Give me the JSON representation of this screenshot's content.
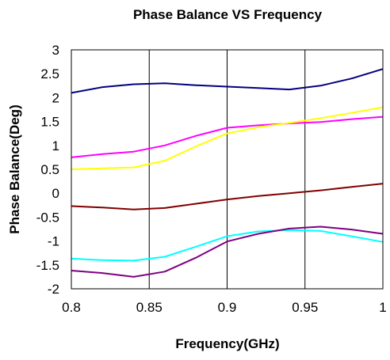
{
  "chart_data": {
    "type": "line",
    "title": "Phase Balance VS Frequency",
    "xlabel": "Frequency(GHz)",
    "ylabel": "Phase Balance(Deg)",
    "xlim": [
      0.8,
      1.0
    ],
    "ylim": [
      -2,
      3
    ],
    "x_ticks": [
      0.8,
      0.85,
      0.9,
      0.95,
      1.0
    ],
    "x_tick_labels": [
      "0.8",
      "0.85",
      "0.9",
      "0.95",
      "1"
    ],
    "y_ticks": [
      3,
      2.5,
      2,
      1.5,
      1,
      0.5,
      0,
      -0.5,
      -1,
      -1.5,
      -2
    ],
    "y_tick_labels": [
      "3",
      "2.5",
      "2",
      "1.5",
      "1",
      "0.5",
      "0",
      "-0.5",
      "-1",
      "-1.5",
      "-2"
    ],
    "grid": {
      "vertical": true,
      "horizontal": false
    },
    "legend": "none",
    "x": [
      0.8,
      0.82,
      0.84,
      0.86,
      0.88,
      0.9,
      0.92,
      0.94,
      0.96,
      0.98,
      1.0
    ],
    "series": [
      {
        "color": "#000080",
        "values": [
          2.1,
          2.22,
          2.28,
          2.3,
          2.26,
          2.23,
          2.2,
          2.17,
          2.25,
          2.4,
          2.6
        ]
      },
      {
        "color": "#FF00FF",
        "values": [
          0.75,
          0.82,
          0.87,
          1.0,
          1.2,
          1.37,
          1.42,
          1.46,
          1.49,
          1.55,
          1.6
        ]
      },
      {
        "color": "#FFFF00",
        "values": [
          0.5,
          0.52,
          0.54,
          0.68,
          0.98,
          1.25,
          1.38,
          1.47,
          1.57,
          1.68,
          1.8
        ]
      },
      {
        "color": "#800000",
        "values": [
          -0.27,
          -0.3,
          -0.34,
          -0.31,
          -0.22,
          -0.13,
          -0.06,
          0.0,
          0.06,
          0.13,
          0.2
        ]
      },
      {
        "color": "#00FFFF",
        "values": [
          -1.37,
          -1.4,
          -1.41,
          -1.33,
          -1.12,
          -0.9,
          -0.8,
          -0.77,
          -0.79,
          -0.9,
          -1.02
        ]
      },
      {
        "color": "#800080",
        "values": [
          -1.62,
          -1.67,
          -1.75,
          -1.64,
          -1.35,
          -1.01,
          -0.85,
          -0.74,
          -0.7,
          -0.76,
          -0.85
        ]
      }
    ]
  }
}
